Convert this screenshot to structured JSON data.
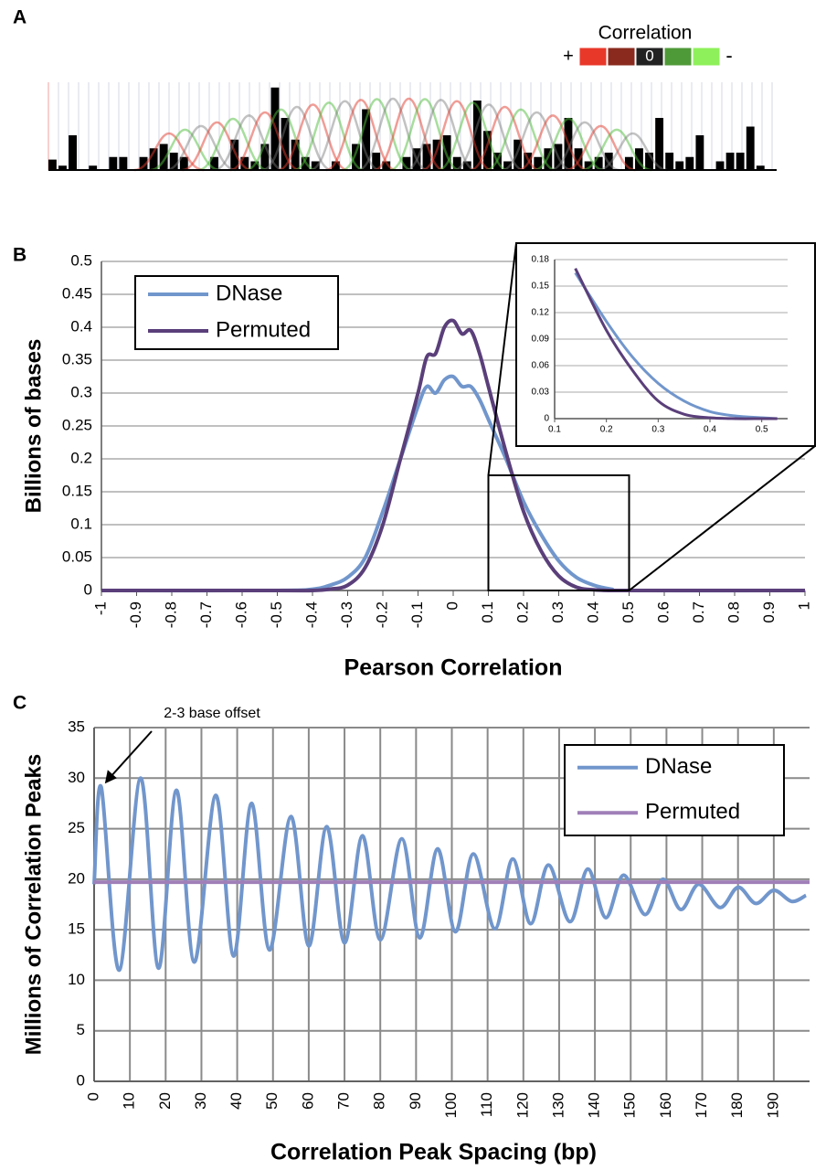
{
  "chart_data": [
    {
      "type": "track",
      "panel": "A",
      "legend_title": "Correlation",
      "legend_labels": [
        "+",
        "0",
        "-"
      ],
      "legend_colors": [
        "#e8382a",
        "#8a2a1e",
        "#222222",
        "#4f9a38",
        "#8ef05a"
      ],
      "color": "#000000",
      "values": [
        12,
        5,
        40,
        0,
        5,
        0,
        15,
        15,
        0,
        15,
        25,
        30,
        20,
        15,
        0,
        0,
        15,
        0,
        35,
        15,
        10,
        30,
        95,
        60,
        35,
        15,
        10,
        0,
        10,
        0,
        30,
        70,
        20,
        10,
        0,
        15,
        25,
        30,
        35,
        40,
        15,
        10,
        80,
        45,
        20,
        10,
        35,
        20,
        15,
        25,
        30,
        60,
        25,
        10,
        15,
        20,
        0,
        15,
        25,
        20,
        60,
        20,
        10,
        15,
        40,
        0,
        10,
        20,
        20,
        50,
        5,
        0
      ]
    },
    {
      "type": "line",
      "panel": "B",
      "xlabel": "Pearson Correlation",
      "ylabel": "Billions of bases",
      "x": [
        -1,
        -0.5,
        -0.4,
        -0.35,
        -0.3,
        -0.25,
        -0.2,
        -0.15,
        -0.1,
        -0.075,
        -0.05,
        -0.025,
        0,
        0.025,
        0.05,
        0.075,
        0.1,
        0.15,
        0.2,
        0.25,
        0.3,
        0.35,
        0.4,
        0.45,
        0.5,
        1
      ],
      "series": [
        {
          "name": "DNase",
          "color": "#7196cc",
          "values": [
            0,
            0,
            0.002,
            0.008,
            0.02,
            0.05,
            0.12,
            0.2,
            0.28,
            0.31,
            0.3,
            0.32,
            0.325,
            0.31,
            0.31,
            0.29,
            0.26,
            0.2,
            0.135,
            0.085,
            0.045,
            0.02,
            0.008,
            0.002,
            0,
            0
          ]
        },
        {
          "name": "Permuted",
          "color": "#5a3f7a",
          "values": [
            0,
            0,
            0,
            0.002,
            0.008,
            0.035,
            0.1,
            0.2,
            0.3,
            0.355,
            0.36,
            0.4,
            0.41,
            0.39,
            0.395,
            0.36,
            0.31,
            0.21,
            0.12,
            0.06,
            0.022,
            0.005,
            0.001,
            0,
            0,
            0
          ]
        }
      ],
      "xlim": [
        -1,
        1
      ],
      "xticks": [
        -1,
        -0.9,
        -0.8,
        -0.7,
        -0.6,
        -0.5,
        -0.4,
        -0.3,
        -0.2,
        -0.1,
        0,
        0.1,
        0.2,
        0.3,
        0.4,
        0.5,
        0.6,
        0.7,
        0.8,
        0.9,
        1
      ],
      "ylim": [
        0,
        0.5
      ],
      "yticks": [
        0,
        0.05,
        0.1,
        0.15,
        0.2,
        0.25,
        0.3,
        0.35,
        0.4,
        0.45,
        0.5
      ],
      "grid": true,
      "legend": "top-left",
      "zoom": {
        "xlim": [
          0.1,
          0.5
        ],
        "ylim": [
          0,
          0.175
        ]
      },
      "inset": {
        "xlim": [
          0.1,
          0.55
        ],
        "ylim": [
          0,
          0.18
        ],
        "xticks": [
          0.1,
          0.2,
          0.3,
          0.4,
          0.5
        ],
        "yticks": [
          0,
          0.03,
          0.06,
          0.09,
          0.12,
          0.15,
          0.18
        ],
        "grid": true,
        "series": [
          {
            "color": "#7196cc",
            "x": [
              0.14,
              0.2,
              0.25,
              0.3,
              0.35,
              0.4,
              0.45,
              0.5,
              0.53
            ],
            "values": [
              0.165,
              0.11,
              0.07,
              0.04,
              0.02,
              0.008,
              0.003,
              0.001,
              0
            ]
          },
          {
            "color": "#5a3f7a",
            "x": [
              0.14,
              0.2,
              0.25,
              0.3,
              0.35,
              0.4,
              0.45,
              0.5,
              0.53
            ],
            "values": [
              0.17,
              0.1,
              0.055,
              0.02,
              0.005,
              0.001,
              0,
              0,
              0
            ]
          }
        ]
      }
    },
    {
      "type": "line",
      "panel": "C",
      "xlabel": "Correlation Peak Spacing (bp)",
      "ylabel": "Millions of Correlation Peaks",
      "series": [
        {
          "name": "DNase",
          "color": "#7196cc",
          "x": [
            0,
            2,
            7,
            13,
            18,
            23,
            28,
            34,
            39,
            44,
            49,
            55,
            60,
            65,
            70,
            75,
            80,
            86,
            91,
            96,
            101,
            106,
            112,
            117,
            122,
            127,
            133,
            138,
            143,
            148,
            154,
            159,
            164,
            169,
            175,
            180,
            185,
            190,
            195,
            199
          ],
          "values": [
            19.5,
            29.1,
            11,
            30,
            11.2,
            28.8,
            11.8,
            28.3,
            12.4,
            27.5,
            13,
            26.2,
            13.4,
            25.2,
            13.7,
            24.3,
            14,
            24,
            14.2,
            23,
            14.8,
            22.5,
            15.1,
            22,
            15.6,
            21.4,
            15.8,
            21,
            16.2,
            20.4,
            16.5,
            20,
            17,
            19.5,
            17.2,
            19.2,
            17.6,
            18.9,
            17.8,
            18.4
          ]
        },
        {
          "name": "Permuted",
          "color": "#a07fb8",
          "x": [
            0,
            200
          ],
          "values": [
            19.7,
            19.7
          ]
        }
      ],
      "xlim": [
        0,
        200
      ],
      "xticks": [
        0,
        10,
        20,
        30,
        40,
        50,
        60,
        70,
        80,
        90,
        100,
        110,
        120,
        130,
        140,
        150,
        160,
        170,
        180,
        190
      ],
      "ylim": [
        0,
        35
      ],
      "yticks": [
        0,
        5,
        10,
        15,
        20,
        25,
        30,
        35
      ],
      "grid": true,
      "xgrid": true,
      "legend": "top-right",
      "annotation": {
        "text": "2-3 base offset",
        "x": 2,
        "y": 29.1
      }
    }
  ]
}
